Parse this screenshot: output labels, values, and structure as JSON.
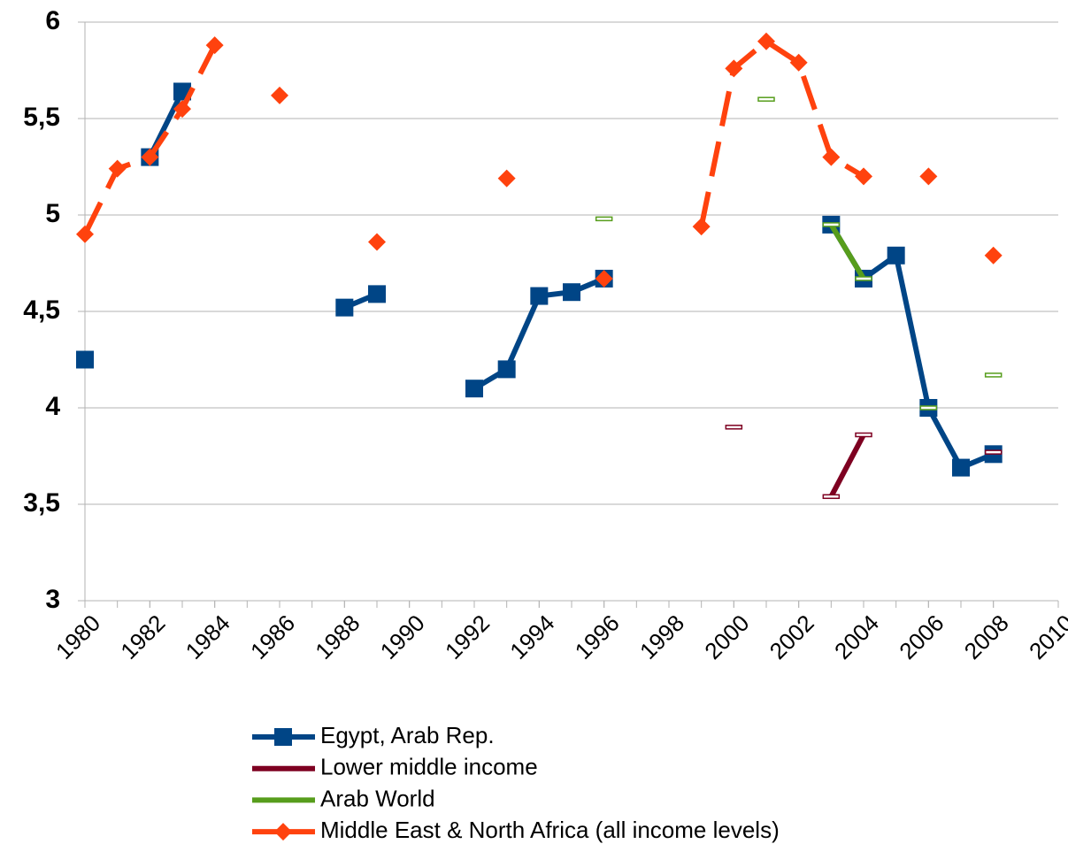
{
  "chart_data": {
    "type": "line",
    "x": [
      1980,
      1981,
      1982,
      1983,
      1984,
      1985,
      1986,
      1987,
      1988,
      1989,
      1990,
      1991,
      1992,
      1993,
      1994,
      1995,
      1996,
      1997,
      1998,
      1999,
      2000,
      2001,
      2002,
      2003,
      2004,
      2005,
      2006,
      2007,
      2008
    ],
    "series": [
      {
        "name": "Egypt, Arab Rep.",
        "color": "#004586",
        "marker": "square",
        "line_style": "solid",
        "values": [
          4.25,
          null,
          5.3,
          5.64,
          null,
          null,
          null,
          null,
          4.52,
          4.59,
          null,
          null,
          4.1,
          4.2,
          4.58,
          4.6,
          4.67,
          null,
          null,
          null,
          null,
          null,
          null,
          4.95,
          4.67,
          4.79,
          4.0,
          3.69,
          3.76
        ]
      },
      {
        "name": "Lower middle income",
        "color": "#7e0021",
        "marker": "bar",
        "line_style": "solid",
        "values": [
          null,
          null,
          null,
          null,
          null,
          null,
          null,
          null,
          null,
          null,
          null,
          null,
          null,
          null,
          null,
          null,
          null,
          null,
          null,
          null,
          3.9,
          null,
          null,
          3.54,
          3.86,
          null,
          null,
          null,
          3.77
        ]
      },
      {
        "name": "Arab World",
        "color": "#579d1c",
        "marker": "bar",
        "line_style": "solid",
        "values": [
          null,
          null,
          null,
          null,
          null,
          null,
          null,
          null,
          null,
          null,
          null,
          null,
          null,
          null,
          null,
          null,
          4.98,
          null,
          null,
          null,
          null,
          5.6,
          null,
          4.95,
          4.67,
          null,
          4.0,
          null,
          4.17
        ]
      },
      {
        "name": "Middle East & North Africa (all income levels)",
        "color": "#ff420e",
        "marker": "diamond",
        "line_style": "dashed",
        "values": [
          4.9,
          5.24,
          5.3,
          5.55,
          5.88,
          null,
          5.62,
          null,
          null,
          4.86,
          null,
          null,
          null,
          5.19,
          null,
          null,
          4.67,
          null,
          null,
          4.94,
          5.76,
          5.9,
          5.79,
          5.3,
          5.2,
          null,
          5.2,
          null,
          4.79
        ]
      }
    ],
    "xlim": [
      1980,
      2010
    ],
    "xticks": [
      1980,
      1982,
      1984,
      1986,
      1988,
      1990,
      1992,
      1994,
      1996,
      1998,
      2000,
      2002,
      2004,
      2006,
      2008,
      2010
    ],
    "ylim": [
      3,
      6
    ],
    "yticks": [
      3,
      {
        "value": 3.5,
        "label": "3,5"
      },
      4,
      {
        "value": 4.5,
        "label": "4,5"
      },
      5,
      {
        "value": 5.5,
        "label": "5,5"
      },
      6
    ],
    "grid": true
  }
}
